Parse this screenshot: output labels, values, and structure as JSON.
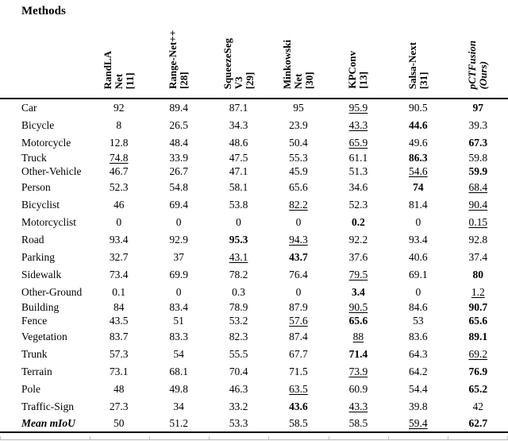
{
  "title": "Methods",
  "table": {
    "columns": [
      {
        "lines": "RandLA\nNet\n[11]",
        "emph": "b"
      },
      {
        "lines": "Range-Net++\n[28]",
        "emph": "b"
      },
      {
        "lines": "SqueezeSeg\nV3\n[29]",
        "emph": "b"
      },
      {
        "lines": "Minkowski\nNet\n[30]",
        "emph": "b"
      },
      {
        "lines": "KPConv\n[13]",
        "emph": "b"
      },
      {
        "lines": "Salsa-Next\n[31]",
        "emph": "b"
      },
      {
        "lines": "pCTFusion\n(Ours)",
        "emph": "bi"
      }
    ],
    "rows": [
      {
        "label": "Car",
        "cells": [
          {
            "v": "92"
          },
          {
            "v": "89.4"
          },
          {
            "v": "87.1"
          },
          {
            "v": "95"
          },
          {
            "v": "95.9",
            "s": "u"
          },
          {
            "v": "90.5"
          },
          {
            "v": "97",
            "s": "b"
          }
        ]
      },
      {
        "label": "Bicycle",
        "cells": [
          {
            "v": "8"
          },
          {
            "v": "26.5"
          },
          {
            "v": "34.3"
          },
          {
            "v": "23.9"
          },
          {
            "v": "43.3",
            "s": "u"
          },
          {
            "v": "44.6",
            "s": "b"
          },
          {
            "v": "39.3"
          }
        ]
      },
      {
        "label": "Motorcycle",
        "cells": [
          {
            "v": "12.8"
          },
          {
            "v": "48.4"
          },
          {
            "v": "48.6"
          },
          {
            "v": "50.4"
          },
          {
            "v": "65.9",
            "s": "u"
          },
          {
            "v": "49.6"
          },
          {
            "v": "67.3",
            "s": "b"
          }
        ]
      },
      {
        "label": "Truck",
        "tight": true,
        "cells": [
          {
            "v": "74.8",
            "s": "u"
          },
          {
            "v": "33.9"
          },
          {
            "v": "47.5"
          },
          {
            "v": "55.3"
          },
          {
            "v": "61.1"
          },
          {
            "v": "86.3",
            "s": "b"
          },
          {
            "v": "59.8"
          }
        ]
      },
      {
        "label": "Other-Vehicle",
        "tight": true,
        "cells": [
          {
            "v": "46.7"
          },
          {
            "v": "26.7"
          },
          {
            "v": "47.1"
          },
          {
            "v": "45.9"
          },
          {
            "v": "51.3"
          },
          {
            "v": "54.6",
            "s": "u"
          },
          {
            "v": "59.9",
            "s": "b"
          }
        ]
      },
      {
        "label": "Person",
        "cells": [
          {
            "v": "52.3"
          },
          {
            "v": "54.8"
          },
          {
            "v": "58.1"
          },
          {
            "v": "65.6"
          },
          {
            "v": "34.6"
          },
          {
            "v": "74",
            "s": "b"
          },
          {
            "v": "68.4",
            "s": "u"
          }
        ]
      },
      {
        "label": "Bicyclist",
        "cells": [
          {
            "v": "46"
          },
          {
            "v": "69.4"
          },
          {
            "v": "53.8"
          },
          {
            "v": "82.2",
            "s": "u"
          },
          {
            "v": "52.3"
          },
          {
            "v": "81.4"
          },
          {
            "v": "90.4",
            "s": "u"
          }
        ]
      },
      {
        "label": "Motorcyclist",
        "cells": [
          {
            "v": "0"
          },
          {
            "v": "0"
          },
          {
            "v": "0"
          },
          {
            "v": "0"
          },
          {
            "v": "0.2",
            "s": "b"
          },
          {
            "v": "0"
          },
          {
            "v": "0.15",
            "s": "u"
          }
        ]
      },
      {
        "label": "Road",
        "cells": [
          {
            "v": "93.4"
          },
          {
            "v": "92.9"
          },
          {
            "v": "95.3",
            "s": "b"
          },
          {
            "v": "94.3",
            "s": "u"
          },
          {
            "v": "92.2"
          },
          {
            "v": "93.4"
          },
          {
            "v": "92.8"
          }
        ]
      },
      {
        "label": "Parking",
        "cells": [
          {
            "v": "32.7"
          },
          {
            "v": "37"
          },
          {
            "v": "43.1",
            "s": "u"
          },
          {
            "v": "43.7",
            "s": "b"
          },
          {
            "v": "37.6"
          },
          {
            "v": "40.6"
          },
          {
            "v": "37.4"
          }
        ]
      },
      {
        "label": "Sidewalk",
        "cells": [
          {
            "v": "73.4"
          },
          {
            "v": "69.9"
          },
          {
            "v": "78.2"
          },
          {
            "v": "76.4"
          },
          {
            "v": "79.5",
            "s": "u"
          },
          {
            "v": "69.1"
          },
          {
            "v": "80",
            "s": "b"
          }
        ]
      },
      {
        "label": "Other-Ground",
        "cells": [
          {
            "v": "0.1"
          },
          {
            "v": "0"
          },
          {
            "v": "0.3"
          },
          {
            "v": "0"
          },
          {
            "v": "3.4",
            "s": "b"
          },
          {
            "v": "0"
          },
          {
            "v": "1.2",
            "s": "u"
          }
        ]
      },
      {
        "label": "Building",
        "tight": true,
        "cells": [
          {
            "v": "84"
          },
          {
            "v": "83.4"
          },
          {
            "v": "78.9"
          },
          {
            "v": "87.9"
          },
          {
            "v": "90.5",
            "s": "u"
          },
          {
            "v": "84.6"
          },
          {
            "v": "90.7",
            "s": "b"
          }
        ]
      },
      {
        "label": "Fence",
        "tight": true,
        "cells": [
          {
            "v": "43.5"
          },
          {
            "v": "51"
          },
          {
            "v": "53.2"
          },
          {
            "v": "57.6",
            "s": "u"
          },
          {
            "v": "65.6",
            "s": "b"
          },
          {
            "v": "53"
          },
          {
            "v": "65.6",
            "s": "b"
          }
        ]
      },
      {
        "label": "Vegetation",
        "cells": [
          {
            "v": "83.7"
          },
          {
            "v": "83.3"
          },
          {
            "v": "82.3"
          },
          {
            "v": "87.4"
          },
          {
            "v": "88",
            "s": "u"
          },
          {
            "v": "83.6"
          },
          {
            "v": "89.1",
            "s": "b"
          }
        ]
      },
      {
        "label": "Trunk",
        "cells": [
          {
            "v": "57.3"
          },
          {
            "v": "54"
          },
          {
            "v": "55.5"
          },
          {
            "v": "67.7"
          },
          {
            "v": "71.4",
            "s": "b"
          },
          {
            "v": "64.3"
          },
          {
            "v": "69.2",
            "s": "u"
          }
        ]
      },
      {
        "label": "Terrain",
        "cells": [
          {
            "v": "73.1"
          },
          {
            "v": "68.1"
          },
          {
            "v": "70.4"
          },
          {
            "v": "71.5"
          },
          {
            "v": "73.9",
            "s": "u"
          },
          {
            "v": "64.2"
          },
          {
            "v": "76.9",
            "s": "b"
          }
        ]
      },
      {
        "label": "Pole",
        "cells": [
          {
            "v": "48"
          },
          {
            "v": "49.8"
          },
          {
            "v": "46.3"
          },
          {
            "v": "63.5",
            "s": "u"
          },
          {
            "v": "60.9"
          },
          {
            "v": "54.4"
          },
          {
            "v": "65.2",
            "s": "b"
          }
        ]
      },
      {
        "label": "Traffic-Sign",
        "cells": [
          {
            "v": "27.3"
          },
          {
            "v": "34"
          },
          {
            "v": "33.2"
          },
          {
            "v": "43.6",
            "s": "b"
          },
          {
            "v": "43.3",
            "s": "u"
          },
          {
            "v": "39.8"
          },
          {
            "v": "42"
          }
        ]
      },
      {
        "label": "Mean mIoU",
        "emph": "bi",
        "cells": [
          {
            "v": "50"
          },
          {
            "v": "51.2"
          },
          {
            "v": "53.3"
          },
          {
            "v": "58.5"
          },
          {
            "v": "58.5"
          },
          {
            "v": "59.4",
            "s": "u"
          },
          {
            "v": "62.7",
            "s": "b"
          }
        ]
      }
    ]
  }
}
